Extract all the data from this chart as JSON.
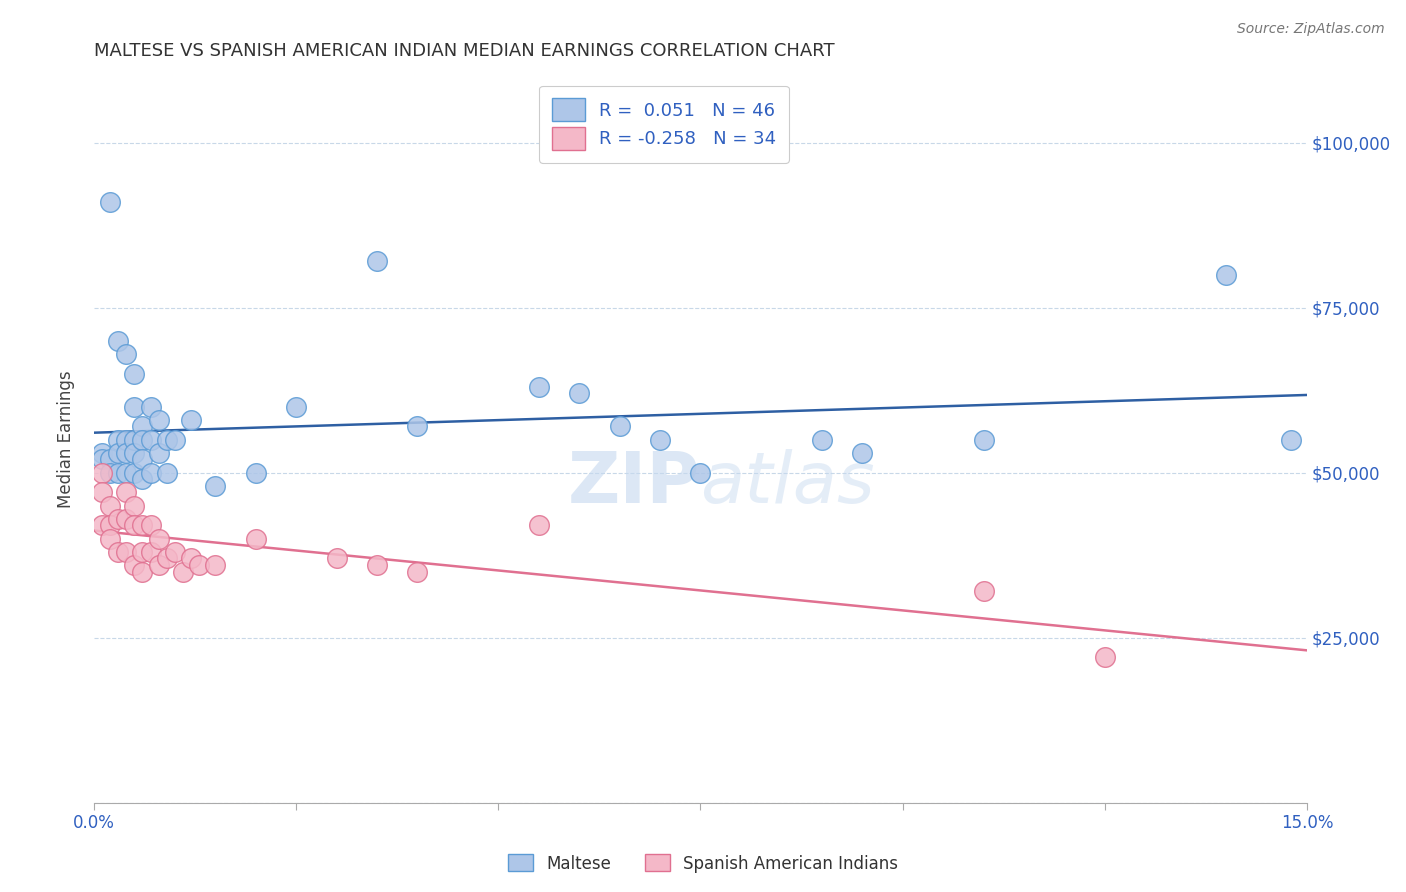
{
  "title": "MALTESE VS SPANISH AMERICAN INDIAN MEDIAN EARNINGS CORRELATION CHART",
  "source": "Source: ZipAtlas.com",
  "ylabel": "Median Earnings",
  "y_ticks": [
    0,
    25000,
    50000,
    75000,
    100000
  ],
  "y_tick_labels": [
    "",
    "$25,000",
    "$50,000",
    "$75,000",
    "$100,000"
  ],
  "xlim": [
    0.0,
    0.15
  ],
  "ylim": [
    0,
    110000
  ],
  "maltese_color": "#aec6e8",
  "maltese_edge": "#5b9bd5",
  "spanish_color": "#f4b8c8",
  "spanish_edge": "#e07090",
  "trendline_maltese": "#2e5fa3",
  "trendline_spanish": "#e07090",
  "tick_label_color": "#3060c0",
  "maltese_x": [
    0.001,
    0.001,
    0.002,
    0.002,
    0.002,
    0.003,
    0.003,
    0.003,
    0.003,
    0.004,
    0.004,
    0.004,
    0.004,
    0.005,
    0.005,
    0.005,
    0.005,
    0.005,
    0.006,
    0.006,
    0.006,
    0.006,
    0.007,
    0.007,
    0.007,
    0.008,
    0.008,
    0.009,
    0.009,
    0.01,
    0.012,
    0.015,
    0.02,
    0.025,
    0.035,
    0.04,
    0.055,
    0.06,
    0.065,
    0.07,
    0.075,
    0.09,
    0.095,
    0.11,
    0.14,
    0.148
  ],
  "maltese_y": [
    53000,
    52000,
    91000,
    52000,
    50000,
    70000,
    55000,
    53000,
    50000,
    68000,
    55000,
    53000,
    50000,
    65000,
    60000,
    55000,
    53000,
    50000,
    57000,
    55000,
    52000,
    49000,
    60000,
    55000,
    50000,
    58000,
    53000,
    55000,
    50000,
    55000,
    58000,
    48000,
    50000,
    60000,
    82000,
    57000,
    63000,
    62000,
    57000,
    55000,
    50000,
    55000,
    53000,
    55000,
    80000,
    55000
  ],
  "spanish_x": [
    0.001,
    0.001,
    0.001,
    0.002,
    0.002,
    0.002,
    0.003,
    0.003,
    0.004,
    0.004,
    0.004,
    0.005,
    0.005,
    0.005,
    0.006,
    0.006,
    0.006,
    0.007,
    0.007,
    0.008,
    0.008,
    0.009,
    0.01,
    0.011,
    0.012,
    0.013,
    0.015,
    0.02,
    0.03,
    0.035,
    0.04,
    0.055,
    0.11,
    0.125
  ],
  "spanish_y": [
    50000,
    47000,
    42000,
    45000,
    42000,
    40000,
    43000,
    38000,
    47000,
    43000,
    38000,
    45000,
    42000,
    36000,
    42000,
    38000,
    35000,
    42000,
    38000,
    40000,
    36000,
    37000,
    38000,
    35000,
    37000,
    36000,
    36000,
    40000,
    37000,
    36000,
    35000,
    42000,
    32000,
    22000
  ],
  "watermark_zip": "ZIP",
  "watermark_atlas": "atlas",
  "background_color": "#ffffff",
  "grid_color": "#c8d8e8"
}
